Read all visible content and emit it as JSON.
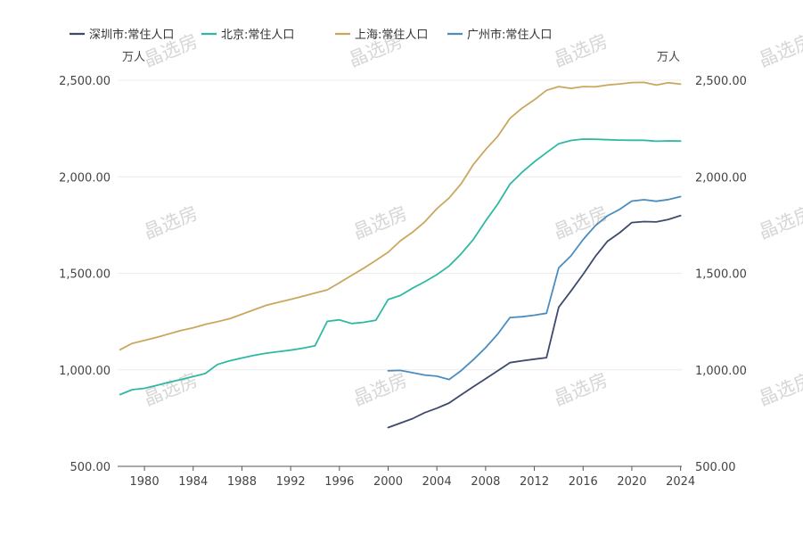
{
  "watermark": "晶选房",
  "chart_data": {
    "type": "line",
    "left_unit": "万人",
    "right_unit": "万人",
    "ylim": [
      500,
      2500
    ],
    "yticks": [
      500,
      1000,
      1500,
      2000,
      2500
    ],
    "ytick_labels": [
      "500.00",
      "1,000.00",
      "1,500.00",
      "2,000.00",
      "2,500.00"
    ],
    "xlim": [
      1978,
      2024
    ],
    "xticks": [
      1980,
      1984,
      1988,
      1992,
      1996,
      2000,
      2004,
      2008,
      2012,
      2016,
      2020,
      2024
    ],
    "xtick_labels": [
      "1980",
      "1984",
      "1988",
      "1992",
      "1996",
      "2000",
      "2004",
      "2008",
      "2012",
      "2016",
      "2020",
      "2024"
    ],
    "grid": true,
    "legend_position": "top-left",
    "series": [
      {
        "name": "深圳市:常住人口",
        "color": "#3d4a6d",
        "x": [
          2000,
          2001,
          2002,
          2003,
          2004,
          2005,
          2006,
          2007,
          2008,
          2009,
          2010,
          2011,
          2012,
          2013,
          2014,
          2015,
          2016,
          2017,
          2018,
          2019,
          2020,
          2021,
          2022,
          2023,
          2024
        ],
        "values": [
          701,
          724,
          747,
          778,
          801,
          828,
          871,
          913,
          954,
          995,
          1037,
          1047,
          1055,
          1063,
          1324,
          1408,
          1495,
          1587,
          1666,
          1710,
          1763,
          1768,
          1766,
          1779,
          1799
        ]
      },
      {
        "name": "北京:常住人口",
        "color": "#2fb9a2",
        "x": [
          1978,
          1979,
          1980,
          1981,
          1982,
          1983,
          1984,
          1985,
          1986,
          1987,
          1988,
          1989,
          1990,
          1991,
          1992,
          1993,
          1994,
          1995,
          1996,
          1997,
          1998,
          1999,
          2000,
          2001,
          2002,
          2003,
          2004,
          2005,
          2006,
          2007,
          2008,
          2009,
          2010,
          2011,
          2012,
          2013,
          2014,
          2015,
          2016,
          2017,
          2018,
          2019,
          2020,
          2021,
          2022,
          2023,
          2024
        ],
        "values": [
          872,
          897,
          904,
          919,
          935,
          950,
          965,
          981,
          1028,
          1047,
          1061,
          1075,
          1086,
          1094,
          1102,
          1112,
          1125,
          1251,
          1259,
          1240,
          1246,
          1257,
          1364,
          1385,
          1423,
          1456,
          1493,
          1538,
          1601,
          1676,
          1771,
          1860,
          1962,
          2024,
          2078,
          2125,
          2171,
          2188,
          2195,
          2194,
          2192,
          2190,
          2189,
          2189,
          2184,
          2186,
          2185
        ]
      },
      {
        "name": "上海:常住人口",
        "color": "#c9a85e",
        "x": [
          1978,
          1979,
          1980,
          1981,
          1982,
          1983,
          1984,
          1985,
          1986,
          1987,
          1988,
          1989,
          1990,
          1991,
          1992,
          1993,
          1994,
          1995,
          1996,
          1997,
          1998,
          1999,
          2000,
          2001,
          2002,
          2003,
          2004,
          2005,
          2006,
          2007,
          2008,
          2009,
          2010,
          2011,
          2012,
          2013,
          2014,
          2015,
          2016,
          2017,
          2018,
          2019,
          2020,
          2021,
          2022,
          2023,
          2024
        ],
        "values": [
          1104,
          1137,
          1152,
          1168,
          1186,
          1204,
          1218,
          1236,
          1249,
          1265,
          1288,
          1311,
          1334,
          1350,
          1365,
          1381,
          1398,
          1414,
          1451,
          1489,
          1527,
          1567,
          1609,
          1668,
          1713,
          1766,
          1835,
          1890,
          1964,
          2064,
          2141,
          2210,
          2303,
          2356,
          2399,
          2448,
          2467,
          2458,
          2467,
          2466,
          2475,
          2481,
          2488,
          2489,
          2475,
          2487,
          2480
        ]
      },
      {
        "name": "广州市:常住人口",
        "color": "#4a8dbe",
        "x": [
          2000,
          2001,
          2002,
          2003,
          2004,
          2005,
          2006,
          2007,
          2008,
          2009,
          2010,
          2011,
          2012,
          2013,
          2014,
          2015,
          2016,
          2017,
          2018,
          2019,
          2020,
          2021,
          2022,
          2023,
          2024
        ],
        "values": [
          995,
          997,
          985,
          973,
          967,
          950,
          996,
          1053,
          1115,
          1186,
          1271,
          1275,
          1283,
          1293,
          1528,
          1590,
          1675,
          1746,
          1798,
          1831,
          1874,
          1881,
          1873,
          1882,
          1897
        ]
      }
    ]
  }
}
